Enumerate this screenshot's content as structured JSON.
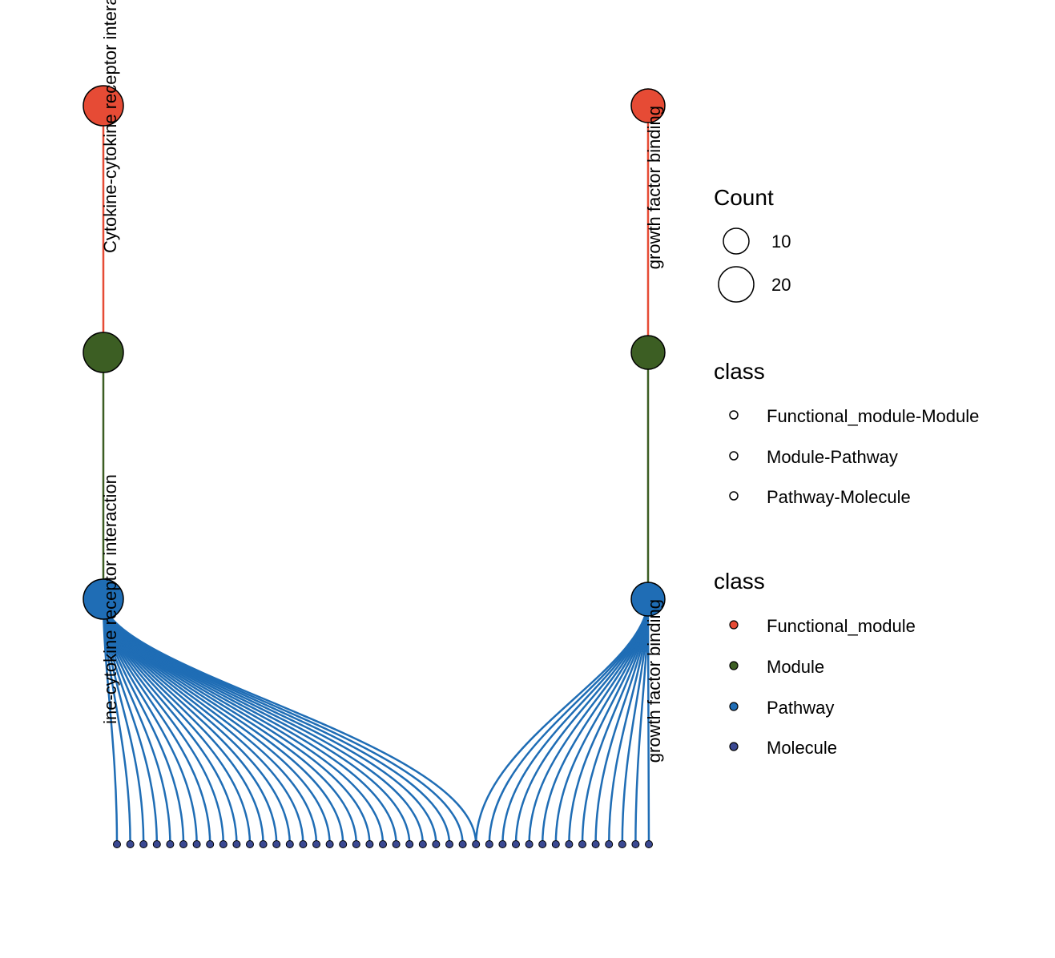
{
  "diagram": {
    "pathways": [
      {
        "functional_module": "Cytokine-cytokine receptor interaction",
        "module_label": "Cytokine-cytokine receptor interaction",
        "pathway_label": "ine-cytokine receptor interaction",
        "molecule_count": 28
      },
      {
        "functional_module": "growth factor binding",
        "module_label": "growth factor binding",
        "pathway_label": "growth factor binding",
        "molecule_count": 14
      }
    ],
    "molecule_node_count": 41
  },
  "colors": {
    "functional_module": "#E64B35",
    "module": "#3C5E23",
    "pathway": "#1F6DB5",
    "molecule": "#3B4992",
    "edge_functional_module_module": "#E64B35",
    "edge_module_pathway": "#3C5E23",
    "edge_pathway_molecule": "#1F6DB5"
  },
  "legend": {
    "count": {
      "title": "Count",
      "items": [
        {
          "label": "10",
          "value": 10
        },
        {
          "label": "20",
          "value": 20
        }
      ]
    },
    "edge_class": {
      "title": "class",
      "items": [
        {
          "label": "Functional_module-Module"
        },
        {
          "label": "Module-Pathway"
        },
        {
          "label": "Pathway-Molecule"
        }
      ]
    },
    "node_class": {
      "title": "class",
      "items": [
        {
          "label": "Functional_module",
          "color": "#E64B35"
        },
        {
          "label": "Module",
          "color": "#3C5E23"
        },
        {
          "label": "Pathway",
          "color": "#1F6DB5"
        },
        {
          "label": "Molecule",
          "color": "#3B4992"
        }
      ]
    }
  }
}
